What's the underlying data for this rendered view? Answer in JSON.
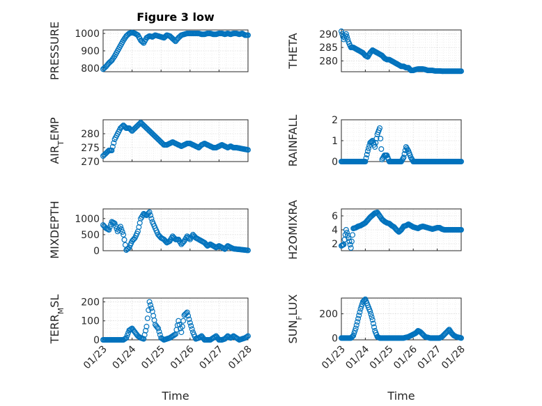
{
  "chart_data": [
    {
      "type": "scatter",
      "title": "Figure 3 low",
      "ylabel": "PRESSURE",
      "ylim": [
        780,
        1020
      ],
      "yticks": [
        800,
        900,
        1000
      ],
      "xlim_days": [
        0,
        5
      ],
      "xticks": [
        "01/23",
        "01/24",
        "01/25",
        "01/26",
        "01/27",
        "01/28"
      ],
      "show_xticklabels": false,
      "color": "#0072BD",
      "x": [
        0.0,
        0.1,
        0.2,
        0.3,
        0.4,
        0.5,
        0.6,
        0.7,
        0.8,
        0.9,
        1.0,
        1.1,
        1.2,
        1.3,
        1.4,
        1.5,
        1.6,
        1.7,
        1.8,
        1.9,
        2.0,
        2.1,
        2.2,
        2.3,
        2.4,
        2.5,
        2.6,
        2.7,
        2.8,
        2.9,
        3.0,
        3.1,
        3.2,
        3.3,
        3.4,
        3.5,
        3.6,
        3.7,
        3.8,
        3.9,
        4.0,
        4.1,
        4.2,
        4.3,
        4.4,
        4.5,
        4.6,
        4.7,
        4.8,
        4.9,
        5.0
      ],
      "y": [
        795,
        810,
        830,
        845,
        870,
        900,
        930,
        960,
        985,
        1000,
        1005,
        1000,
        990,
        960,
        945,
        975,
        985,
        980,
        990,
        985,
        980,
        975,
        990,
        985,
        970,
        955,
        975,
        990,
        995,
        1000,
        1000,
        1000,
        1000,
        1000,
        995,
        995,
        1000,
        1000,
        995,
        995,
        1000,
        1000,
        995,
        1000,
        995,
        1000,
        1000,
        995,
        1000,
        990,
        990
      ]
    },
    {
      "type": "scatter",
      "title": "",
      "ylabel": "THETA",
      "ylim": [
        276,
        291.5
      ],
      "yticks": [
        280,
        285,
        290
      ],
      "xlim_days": [
        0,
        5
      ],
      "xticks": [
        "01/23",
        "01/24",
        "01/25",
        "01/26",
        "01/27",
        "01/28"
      ],
      "show_xticklabels": false,
      "color": "#0072BD",
      "x": [
        0.0,
        0.1,
        0.2,
        0.3,
        0.4,
        0.5,
        0.6,
        0.7,
        0.8,
        0.9,
        1.0,
        1.1,
        1.2,
        1.3,
        1.4,
        1.5,
        1.6,
        1.7,
        1.8,
        1.9,
        2.0,
        2.1,
        2.2,
        2.3,
        2.4,
        2.5,
        2.6,
        2.7,
        2.8,
        2.9,
        3.0,
        3.1,
        3.2,
        3.3,
        3.4,
        3.5,
        3.6,
        3.7,
        3.8,
        3.9,
        4.0,
        4.1,
        4.2,
        4.3,
        4.4,
        4.5,
        4.6,
        4.7,
        4.8,
        4.9,
        5.0
      ],
      "y": [
        291,
        288,
        290,
        287,
        285,
        285,
        284.5,
        284,
        283.5,
        283,
        282,
        281.5,
        283,
        284,
        283.5,
        283,
        282.5,
        282,
        281,
        280.5,
        280.5,
        280,
        279.5,
        279,
        278.5,
        278,
        278,
        277.5,
        277.5,
        276.5,
        276.5,
        276.8,
        277,
        277,
        277,
        276.8,
        276.5,
        276.5,
        276.5,
        276.3,
        276.3,
        276.3,
        276.2,
        276.2,
        276.2,
        276.2,
        276.2,
        276.2,
        276.2,
        276.2,
        276.2
      ]
    },
    {
      "type": "scatter",
      "title": "",
      "ylabel_main": "AIR",
      "ylabel_sub": "T",
      "ylabel_rest": "EMP",
      "ylim": [
        270,
        285
      ],
      "yticks": [
        270,
        275,
        280
      ],
      "xlim_days": [
        0,
        5
      ],
      "xticks": [
        "01/23",
        "01/24",
        "01/25",
        "01/26",
        "01/27",
        "01/28"
      ],
      "show_xticklabels": false,
      "color": "#0072BD",
      "x": [
        0.0,
        0.1,
        0.2,
        0.3,
        0.4,
        0.5,
        0.6,
        0.7,
        0.8,
        0.9,
        1.0,
        1.1,
        1.2,
        1.3,
        1.4,
        1.5,
        1.6,
        1.7,
        1.8,
        1.9,
        2.0,
        2.1,
        2.2,
        2.3,
        2.4,
        2.5,
        2.6,
        2.7,
        2.8,
        2.9,
        3.0,
        3.1,
        3.2,
        3.3,
        3.4,
        3.5,
        3.6,
        3.7,
        3.8,
        3.9,
        4.0,
        4.1,
        4.2,
        4.3,
        4.4,
        4.5,
        4.6,
        4.7,
        4.8,
        4.9,
        5.0
      ],
      "y": [
        272,
        273,
        274,
        274,
        278,
        280,
        282,
        283,
        282,
        282,
        281,
        282,
        283,
        284,
        283,
        282,
        281,
        280,
        279,
        278,
        277,
        276,
        276,
        276.5,
        277,
        276.5,
        276,
        275.5,
        276,
        276.5,
        276.5,
        276,
        275.5,
        275,
        276,
        276.5,
        276,
        275.5,
        275,
        275,
        275.5,
        276,
        275.5,
        275,
        275.5,
        275,
        275,
        274.8,
        274.6,
        274.4,
        274.2
      ]
    },
    {
      "type": "scatter",
      "title": "",
      "ylabel": "RAINFALL",
      "ylim": [
        0,
        2
      ],
      "yticks": [
        0,
        1,
        2
      ],
      "xlim_days": [
        0,
        5
      ],
      "xticks": [
        "01/23",
        "01/24",
        "01/25",
        "01/26",
        "01/27",
        "01/28"
      ],
      "show_xticklabels": false,
      "color": "#0072BD",
      "x": [
        0.0,
        0.1,
        0.2,
        0.3,
        0.4,
        0.5,
        0.6,
        0.7,
        0.8,
        0.9,
        1.0,
        1.1,
        1.2,
        1.3,
        1.4,
        1.5,
        1.6,
        1.7,
        1.8,
        1.9,
        2.0,
        2.1,
        2.2,
        2.3,
        2.4,
        2.5,
        2.6,
        2.7,
        2.8,
        2.9,
        3.0,
        3.1,
        3.2,
        3.3,
        3.4,
        3.5,
        3.6,
        3.7,
        3.8,
        3.9,
        4.0,
        4.1,
        4.2,
        4.3,
        4.4,
        4.5,
        4.6,
        4.7,
        4.8,
        4.9,
        5.0
      ],
      "y": [
        0,
        0,
        0,
        0,
        0,
        0,
        0,
        0,
        0,
        0,
        0,
        0.5,
        0.9,
        1.0,
        0.7,
        1.3,
        1.6,
        0.1,
        0.3,
        0.3,
        0,
        0,
        0,
        0,
        0,
        0,
        0.2,
        0.7,
        0.5,
        0.2,
        0,
        0,
        0,
        0,
        0,
        0,
        0,
        0,
        0,
        0,
        0,
        0,
        0,
        0,
        0,
        0,
        0,
        0,
        0,
        0,
        0
      ]
    },
    {
      "type": "scatter",
      "title": "",
      "ylabel": "MIXDEPTH",
      "ylim": [
        0,
        1300
      ],
      "yticks": [
        0,
        500,
        1000
      ],
      "xlim_days": [
        0,
        5
      ],
      "xticks": [
        "01/23",
        "01/24",
        "01/25",
        "01/26",
        "01/27",
        "01/28"
      ],
      "show_xticklabels": false,
      "color": "#0072BD",
      "x": [
        0.0,
        0.1,
        0.2,
        0.3,
        0.4,
        0.5,
        0.6,
        0.7,
        0.8,
        0.9,
        1.0,
        1.1,
        1.2,
        1.3,
        1.4,
        1.5,
        1.6,
        1.7,
        1.8,
        1.9,
        2.0,
        2.1,
        2.2,
        2.3,
        2.4,
        2.5,
        2.6,
        2.7,
        2.8,
        2.9,
        3.0,
        3.1,
        3.2,
        3.3,
        3.4,
        3.5,
        3.6,
        3.7,
        3.8,
        3.9,
        4.0,
        4.1,
        4.2,
        4.3,
        4.4,
        4.5,
        4.6,
        4.7,
        4.8,
        4.9,
        5.0
      ],
      "y": [
        800,
        700,
        650,
        900,
        850,
        600,
        750,
        500,
        20,
        100,
        300,
        400,
        600,
        1000,
        1150,
        1100,
        1200,
        900,
        700,
        500,
        400,
        350,
        250,
        300,
        450,
        350,
        350,
        200,
        300,
        450,
        350,
        500,
        400,
        350,
        300,
        250,
        150,
        200,
        150,
        100,
        150,
        100,
        50,
        150,
        100,
        60,
        50,
        40,
        30,
        20,
        10
      ]
    },
    {
      "type": "scatter",
      "title": "",
      "ylabel": "H2OMIXRA",
      "ylim": [
        1,
        7
      ],
      "yticks": [
        2,
        4,
        6
      ],
      "xlim_days": [
        0,
        5
      ],
      "xticks": [
        "01/23",
        "01/24",
        "01/25",
        "01/26",
        "01/27",
        "01/28"
      ],
      "show_xticklabels": false,
      "color": "#0072BD",
      "x": [
        0.0,
        0.1,
        0.2,
        0.3,
        0.4,
        0.5,
        0.6,
        0.7,
        0.8,
        0.9,
        1.0,
        1.1,
        1.2,
        1.3,
        1.4,
        1.5,
        1.6,
        1.7,
        1.8,
        1.9,
        2.0,
        2.1,
        2.2,
        2.3,
        2.4,
        2.5,
        2.6,
        2.7,
        2.8,
        2.9,
        3.0,
        3.1,
        3.2,
        3.3,
        3.4,
        3.5,
        3.6,
        3.7,
        3.8,
        3.9,
        4.0,
        4.1,
        4.2,
        4.3,
        4.4,
        4.5,
        4.6,
        4.7,
        4.8,
        4.9,
        5.0
      ],
      "y": [
        1.7,
        1.9,
        4.0,
        2.8,
        1.4,
        4.2,
        4.3,
        4.5,
        4.6,
        4.8,
        5.0,
        5.4,
        5.8,
        6.1,
        6.4,
        6.5,
        6.0,
        5.5,
        5.2,
        5.0,
        4.9,
        4.6,
        4.4,
        4.0,
        3.7,
        4.0,
        4.5,
        4.6,
        4.8,
        4.6,
        4.4,
        4.3,
        4.2,
        4.4,
        4.5,
        4.4,
        4.3,
        4.2,
        4.1,
        4.2,
        4.3,
        4.3,
        4.1,
        4.0,
        4.0,
        4.0,
        4.0,
        4.0,
        4.0,
        4.0,
        4.0
      ]
    },
    {
      "type": "scatter",
      "title": "",
      "ylabel_main": "TERR",
      "ylabel_sub": "M",
      "ylabel_rest": "SL",
      "ylim": [
        0,
        220
      ],
      "yticks": [
        0,
        100,
        200
      ],
      "xlim_days": [
        0,
        5
      ],
      "xticks": [
        "01/23",
        "01/24",
        "01/25",
        "01/26",
        "01/27",
        "01/28"
      ],
      "show_xticklabels": true,
      "xlabel": "Time",
      "color": "#0072BD",
      "x": [
        0.0,
        0.1,
        0.2,
        0.3,
        0.4,
        0.5,
        0.6,
        0.7,
        0.8,
        0.9,
        1.0,
        1.1,
        1.2,
        1.3,
        1.4,
        1.5,
        1.6,
        1.7,
        1.8,
        1.9,
        2.0,
        2.1,
        2.2,
        2.3,
        2.4,
        2.5,
        2.6,
        2.7,
        2.8,
        2.9,
        3.0,
        3.1,
        3.2,
        3.3,
        3.4,
        3.5,
        3.6,
        3.7,
        3.8,
        3.9,
        4.0,
        4.1,
        4.2,
        4.3,
        4.4,
        4.5,
        4.6,
        4.7,
        4.8,
        4.9,
        5.0
      ],
      "y": [
        0,
        0,
        0,
        0,
        0,
        0,
        0,
        0,
        10,
        50,
        60,
        40,
        20,
        10,
        5,
        70,
        200,
        150,
        80,
        60,
        10,
        0,
        5,
        10,
        20,
        30,
        100,
        40,
        130,
        145,
        90,
        40,
        5,
        10,
        20,
        0,
        0,
        0,
        10,
        20,
        0,
        0,
        5,
        20,
        10,
        20,
        10,
        0,
        5,
        10,
        20
      ]
    },
    {
      "type": "scatter",
      "title": "",
      "ylabel_main": "SUN",
      "ylabel_sub": "F",
      "ylabel_rest": "LUX",
      "ylim": [
        -15,
        330
      ],
      "yticks": [
        0,
        200
      ],
      "xlim_days": [
        0,
        5
      ],
      "xticks": [
        "01/23",
        "01/24",
        "01/25",
        "01/26",
        "01/27",
        "01/28"
      ],
      "show_xticklabels": true,
      "xlabel": "Time",
      "color": "#0072BD",
      "x": [
        0.0,
        0.1,
        0.2,
        0.3,
        0.4,
        0.5,
        0.6,
        0.7,
        0.8,
        0.9,
        1.0,
        1.1,
        1.2,
        1.3,
        1.4,
        1.5,
        1.6,
        1.7,
        1.8,
        1.9,
        2.0,
        2.1,
        2.2,
        2.3,
        2.4,
        2.5,
        2.6,
        2.7,
        2.8,
        2.9,
        3.0,
        3.1,
        3.2,
        3.3,
        3.4,
        3.5,
        3.6,
        3.7,
        3.8,
        3.9,
        4.0,
        4.1,
        4.2,
        4.3,
        4.4,
        4.5,
        4.6,
        4.7,
        4.8,
        4.9,
        5.0
      ],
      "y": [
        0,
        0,
        0,
        0,
        0,
        20,
        80,
        160,
        240,
        300,
        320,
        270,
        220,
        150,
        60,
        10,
        0,
        0,
        0,
        0,
        0,
        0,
        0,
        0,
        0,
        0,
        0,
        5,
        10,
        20,
        30,
        40,
        60,
        50,
        30,
        10,
        5,
        0,
        0,
        0,
        0,
        0,
        10,
        30,
        50,
        70,
        40,
        20,
        10,
        5,
        0
      ]
    }
  ]
}
